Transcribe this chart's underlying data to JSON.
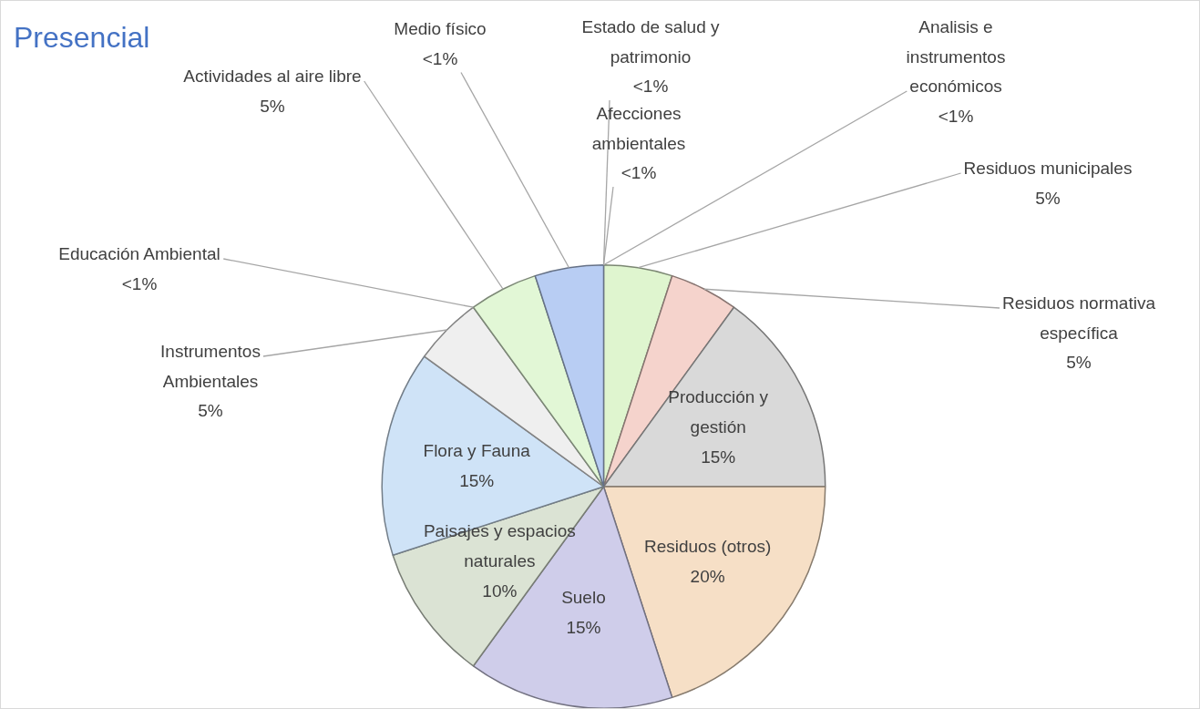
{
  "chart_data": {
    "type": "pie",
    "title": "Presencial",
    "categories": [
      "Estado de salud y patrimonio",
      "Afecciones ambientales",
      "Analisis e instrumentos económicos",
      "Residuos municipales",
      "Residuos normativa específica",
      "Producción y gestión",
      "Residuos (otros)",
      "Suelo",
      "Paisajes y espacios naturales",
      "Flora y Fauna",
      "Instrumentos Ambientales",
      "Educación Ambiental",
      "Actividades al aire libre",
      "Medio físico"
    ],
    "values": [
      0,
      0,
      0,
      5,
      5,
      15,
      20,
      15,
      10,
      15,
      5,
      0,
      5,
      5
    ],
    "value_labels": [
      "<1%",
      "<1%",
      "<1%",
      "5%",
      "5%",
      "15%",
      "20%",
      "15%",
      "10%",
      "15%",
      "5%",
      "<1%",
      "5%",
      "<1%"
    ],
    "colors": [
      "#ed7d31",
      "#ffc000",
      "#5b9bd5",
      "#dff5cf",
      "#f5d3cc",
      "#d9d9d9",
      "#f6dfc6",
      "#cfcdea",
      "#dbe3d4",
      "#cfe3f7",
      "#efefef",
      "#70ad47",
      "#e2f7d6",
      "#b8cdf3"
    ],
    "legend": false
  }
}
